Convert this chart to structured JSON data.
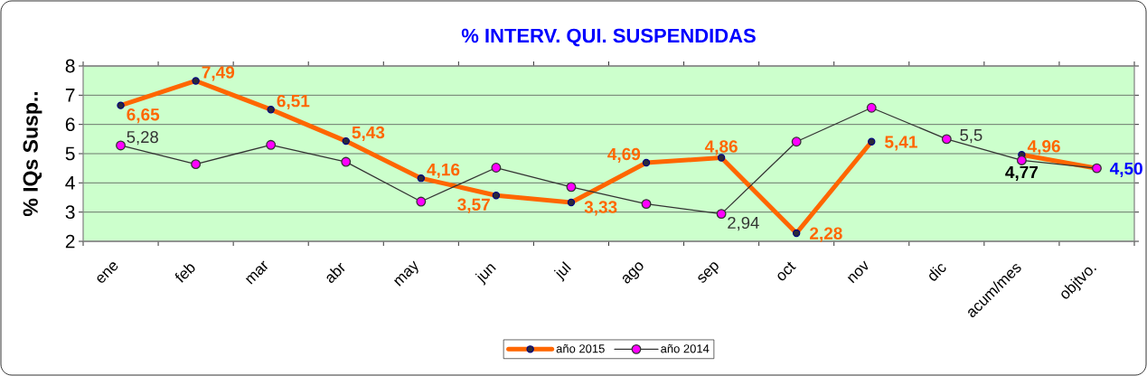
{
  "chart_data": {
    "type": "line",
    "title": "% INTERV. QUI. SUSPENDIDAS",
    "ylabel": "% IQs Susp..",
    "categories": [
      "ene",
      "feb",
      "mar",
      "abr",
      "may",
      "jun",
      "jul",
      "ago",
      "sep",
      "oct",
      "nov",
      "dic",
      "acum/mes",
      "objtvo."
    ],
    "series": [
      {
        "name": "año 2015",
        "color": "#ff6600",
        "values": [
          6.65,
          7.49,
          6.51,
          5.43,
          4.16,
          3.57,
          3.33,
          4.69,
          4.86,
          2.28,
          5.41,
          null,
          4.96,
          4.5
        ],
        "value_labels": [
          "6,65",
          "7,49",
          "6,51",
          "5,43",
          "4,16",
          "3,57",
          "3,33",
          "4,69",
          "4,86",
          "2,28",
          "5,41",
          null,
          "4,96",
          null
        ]
      },
      {
        "name": "año 2014",
        "color": "#333333",
        "values": [
          5.28,
          4.64,
          5.3,
          4.72,
          3.36,
          4.52,
          3.86,
          3.28,
          2.94,
          5.41,
          6.57,
          5.5,
          4.77,
          4.5
        ],
        "value_labels": [
          "5,28",
          null,
          null,
          null,
          null,
          null,
          null,
          null,
          "2,94",
          null,
          null,
          "5,5",
          null,
          null
        ]
      }
    ],
    "annotations": [
      {
        "text": "4,77",
        "x": "acum/mes",
        "y": 4.77
      },
      {
        "text": "4,50",
        "x": "objtvo.",
        "y": 4.5
      }
    ],
    "ylim": [
      2,
      8
    ],
    "yticks": [
      2,
      3,
      4,
      5,
      6,
      7,
      8
    ],
    "grid": "y",
    "legend": "bottom",
    "marker": "circle"
  }
}
